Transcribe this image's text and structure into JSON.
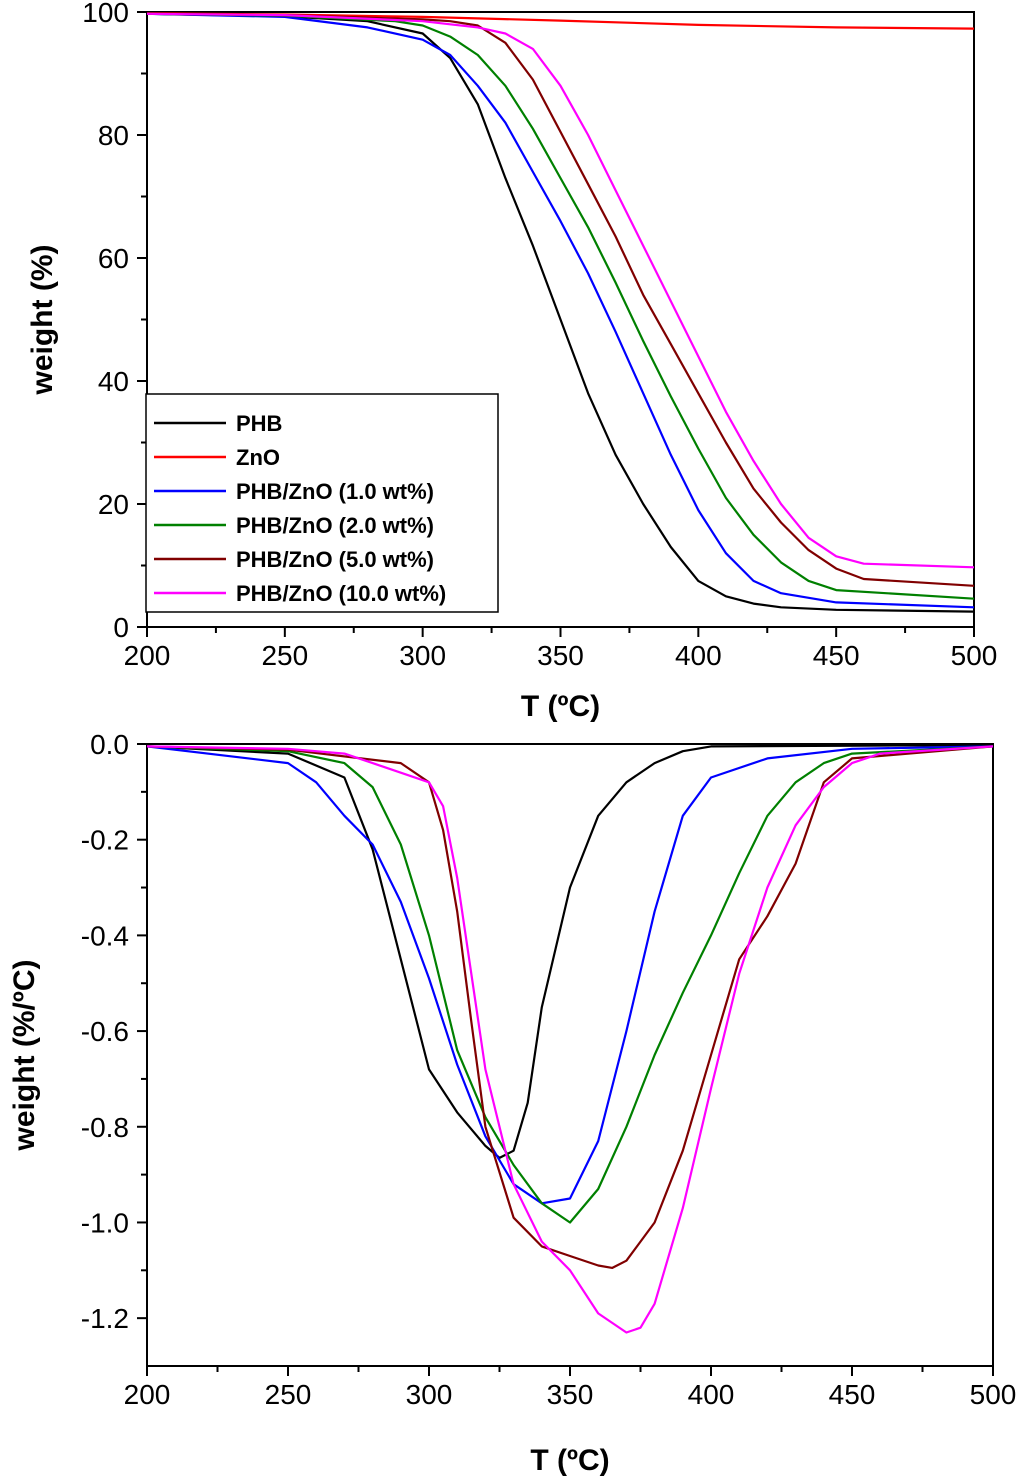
{
  "chart_data": [
    {
      "type": "line",
      "id": "tga",
      "xlabel": "T (ºC)",
      "ylabel": "weight (%)",
      "xlim": [
        200,
        500
      ],
      "ylim": [
        0,
        100
      ],
      "xticks": [
        200,
        250,
        300,
        350,
        400,
        450,
        500
      ],
      "yticks": [
        0,
        20,
        40,
        60,
        80,
        100
      ],
      "legend_position": "bottom-left",
      "series": [
        {
          "name": "PHB",
          "color": "#000000",
          "x": [
            200,
            250,
            280,
            300,
            310,
            320,
            330,
            340,
            350,
            360,
            370,
            380,
            390,
            400,
            410,
            420,
            430,
            450,
            500
          ],
          "y": [
            99.7,
            99.3,
            98.5,
            96.5,
            92.5,
            85.0,
            73.0,
            62.0,
            50.0,
            38.0,
            28.0,
            20.0,
            13.0,
            7.5,
            5.0,
            3.8,
            3.2,
            2.8,
            2.5
          ]
        },
        {
          "name": "ZnO",
          "color": "#ff0000",
          "x": [
            200,
            250,
            300,
            350,
            400,
            450,
            500
          ],
          "y": [
            99.8,
            99.6,
            99.2,
            98.6,
            97.9,
            97.5,
            97.3
          ]
        },
        {
          "name": "PHB/ZnO (1.0 wt%)",
          "color": "#0000ff",
          "x": [
            200,
            250,
            280,
            300,
            310,
            320,
            330,
            340,
            350,
            360,
            370,
            380,
            390,
            400,
            410,
            420,
            430,
            450,
            500
          ],
          "y": [
            99.7,
            99.2,
            97.5,
            95.5,
            93.0,
            88.0,
            82.0,
            74.0,
            66.0,
            57.5,
            48.0,
            38.0,
            28.0,
            19.0,
            12.0,
            7.5,
            5.5,
            4.0,
            3.2
          ]
        },
        {
          "name": "PHB/ZnO (2.0 wt%)",
          "color": "#008000",
          "x": [
            200,
            250,
            290,
            300,
            310,
            320,
            330,
            340,
            350,
            360,
            370,
            380,
            390,
            400,
            410,
            420,
            430,
            440,
            450,
            500
          ],
          "y": [
            99.7,
            99.4,
            98.5,
            97.8,
            96.0,
            93.0,
            88.0,
            81.0,
            73.0,
            65.0,
            56.0,
            46.5,
            37.5,
            29.0,
            21.0,
            15.0,
            10.5,
            7.5,
            6.0,
            4.6
          ]
        },
        {
          "name": "PHB/ZnO (5.0 wt%)",
          "color": "#800000",
          "x": [
            200,
            250,
            300,
            310,
            320,
            330,
            340,
            350,
            360,
            370,
            380,
            390,
            400,
            410,
            420,
            430,
            440,
            450,
            460,
            500
          ],
          "y": [
            99.7,
            99.5,
            98.8,
            98.5,
            97.8,
            95.0,
            89.0,
            80.5,
            72.0,
            63.5,
            54.0,
            46.0,
            38.0,
            30.0,
            22.5,
            17.0,
            12.5,
            9.5,
            7.8,
            6.7
          ]
        },
        {
          "name": "PHB/ZnO (10.0 wt%)",
          "color": "#ff00ff",
          "x": [
            200,
            250,
            300,
            310,
            320,
            330,
            340,
            350,
            360,
            370,
            380,
            390,
            400,
            410,
            420,
            430,
            440,
            450,
            460,
            500
          ],
          "y": [
            99.7,
            99.5,
            98.5,
            98.0,
            97.5,
            96.5,
            94.0,
            88.0,
            80.0,
            71.0,
            62.0,
            53.0,
            44.0,
            35.0,
            27.0,
            20.0,
            14.5,
            11.5,
            10.3,
            9.7
          ]
        }
      ]
    },
    {
      "type": "line",
      "id": "dtg",
      "xlabel": "T (ºC)",
      "ylabel": "weight (%/ºC)",
      "xlim": [
        200,
        500
      ],
      "ylim": [
        -1.3,
        0.0
      ],
      "xticks": [
        200,
        250,
        300,
        350,
        400,
        450,
        500
      ],
      "yticks": [
        0.0,
        -0.2,
        -0.4,
        -0.6,
        -0.8,
        -1.0,
        -1.2
      ],
      "series": [
        {
          "name": "PHB",
          "color": "#000000",
          "x": [
            200,
            250,
            270,
            280,
            290,
            300,
            310,
            320,
            325,
            330,
            335,
            340,
            350,
            360,
            370,
            380,
            390,
            400,
            500
          ],
          "y": [
            -0.005,
            -0.02,
            -0.07,
            -0.22,
            -0.45,
            -0.68,
            -0.77,
            -0.84,
            -0.865,
            -0.85,
            -0.75,
            -0.55,
            -0.3,
            -0.15,
            -0.08,
            -0.04,
            -0.015,
            -0.005,
            -0.002
          ]
        },
        {
          "name": "PHB/ZnO (1.0 wt%)",
          "color": "#0000ff",
          "x": [
            200,
            250,
            260,
            270,
            280,
            290,
            300,
            310,
            320,
            330,
            340,
            350,
            360,
            370,
            380,
            390,
            400,
            420,
            450,
            500
          ],
          "y": [
            -0.005,
            -0.04,
            -0.08,
            -0.15,
            -0.21,
            -0.33,
            -0.49,
            -0.67,
            -0.82,
            -0.92,
            -0.96,
            -0.95,
            -0.83,
            -0.6,
            -0.35,
            -0.15,
            -0.07,
            -0.03,
            -0.01,
            -0.005
          ]
        },
        {
          "name": "PHB/ZnO (2.0 wt%)",
          "color": "#008000",
          "x": [
            200,
            250,
            270,
            280,
            290,
            300,
            310,
            320,
            330,
            340,
            350,
            360,
            370,
            380,
            390,
            400,
            410,
            420,
            430,
            440,
            450,
            500
          ],
          "y": [
            -0.005,
            -0.015,
            -0.04,
            -0.09,
            -0.21,
            -0.4,
            -0.64,
            -0.78,
            -0.88,
            -0.96,
            -1.0,
            -0.93,
            -0.8,
            -0.65,
            -0.52,
            -0.4,
            -0.27,
            -0.15,
            -0.08,
            -0.04,
            -0.02,
            -0.005
          ]
        },
        {
          "name": "PHB/ZnO (5.0 wt%)",
          "color": "#800000",
          "x": [
            200,
            250,
            290,
            300,
            305,
            310,
            315,
            320,
            330,
            340,
            350,
            360,
            365,
            370,
            380,
            390,
            400,
            410,
            420,
            430,
            440,
            450,
            500
          ],
          "y": [
            -0.005,
            -0.012,
            -0.04,
            -0.08,
            -0.18,
            -0.35,
            -0.58,
            -0.8,
            -0.99,
            -1.05,
            -1.07,
            -1.09,
            -1.095,
            -1.08,
            -1.0,
            -0.85,
            -0.65,
            -0.45,
            -0.36,
            -0.25,
            -0.08,
            -0.03,
            -0.005
          ]
        },
        {
          "name": "PHB/ZnO (10.0 wt%)",
          "color": "#ff00ff",
          "x": [
            200,
            250,
            270,
            280,
            290,
            300,
            305,
            310,
            315,
            320,
            330,
            340,
            350,
            360,
            370,
            375,
            380,
            390,
            400,
            410,
            420,
            430,
            440,
            450,
            460,
            500
          ],
          "y": [
            -0.005,
            -0.01,
            -0.02,
            -0.04,
            -0.06,
            -0.08,
            -0.13,
            -0.28,
            -0.48,
            -0.68,
            -0.92,
            -1.04,
            -1.1,
            -1.19,
            -1.23,
            -1.22,
            -1.17,
            -0.97,
            -0.72,
            -0.48,
            -0.3,
            -0.17,
            -0.09,
            -0.04,
            -0.02,
            -0.005
          ]
        }
      ]
    }
  ]
}
